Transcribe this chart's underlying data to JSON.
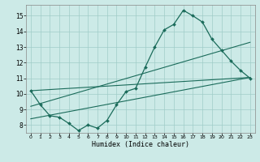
{
  "xlabel": "Humidex (Indice chaleur)",
  "xlim": [
    -0.5,
    23.5
  ],
  "ylim": [
    7.5,
    15.7
  ],
  "yticks": [
    8,
    9,
    10,
    11,
    12,
    13,
    14,
    15
  ],
  "xticks": [
    0,
    1,
    2,
    3,
    4,
    5,
    6,
    7,
    8,
    9,
    10,
    11,
    12,
    13,
    14,
    15,
    16,
    17,
    18,
    19,
    20,
    21,
    22,
    23
  ],
  "bg_color": "#cceae7",
  "grid_color": "#a0ccc8",
  "line_color": "#1a6b5a",
  "main_x": [
    0,
    1,
    2,
    3,
    4,
    5,
    6,
    7,
    8,
    9,
    10,
    11,
    12,
    13,
    14,
    15,
    16,
    17,
    18,
    19,
    20,
    21,
    22,
    23
  ],
  "main_y": [
    10.2,
    9.3,
    8.6,
    8.5,
    8.1,
    7.65,
    8.0,
    7.8,
    8.3,
    9.3,
    10.15,
    10.35,
    11.7,
    13.0,
    14.1,
    14.45,
    15.35,
    15.0,
    14.6,
    13.5,
    12.8,
    12.1,
    11.5,
    11.0
  ],
  "line1_x": [
    0,
    23
  ],
  "line1_y": [
    10.2,
    11.05
  ],
  "line2_x": [
    0,
    23
  ],
  "line2_y": [
    9.2,
    13.3
  ],
  "line3_x": [
    0,
    23
  ],
  "line3_y": [
    8.4,
    11.05
  ]
}
